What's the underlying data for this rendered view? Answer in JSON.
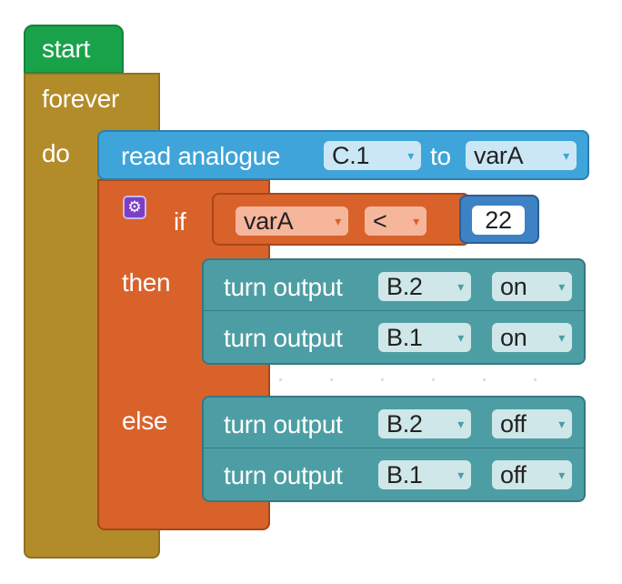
{
  "start": {
    "label": "start"
  },
  "forever": {
    "label": "forever",
    "do_label": "do"
  },
  "read_block": {
    "label": "read analogue",
    "pin": "C.1",
    "to_label": "to",
    "variable": "varA"
  },
  "if_block": {
    "if_label": "if",
    "then_label": "then",
    "else_label": "else",
    "condition": {
      "left_var": "varA",
      "operator": "<",
      "right_value": "22"
    }
  },
  "then_outputs": [
    {
      "label": "turn output",
      "pin": "B.2",
      "state": "on"
    },
    {
      "label": "turn output",
      "pin": "B.1",
      "state": "on"
    }
  ],
  "else_outputs": [
    {
      "label": "turn output",
      "pin": "B.2",
      "state": "off"
    },
    {
      "label": "turn output",
      "pin": "B.1",
      "state": "off"
    }
  ],
  "dropdown_glyph": "▾",
  "icons": {
    "mutator": "gear-icon"
  },
  "colors": {
    "start": "#1aa24b",
    "forever": "#b38c2a",
    "read": "#3fa4d9",
    "if": "#d9622b",
    "output": "#4d9ea4",
    "number": "#3d82c4"
  }
}
